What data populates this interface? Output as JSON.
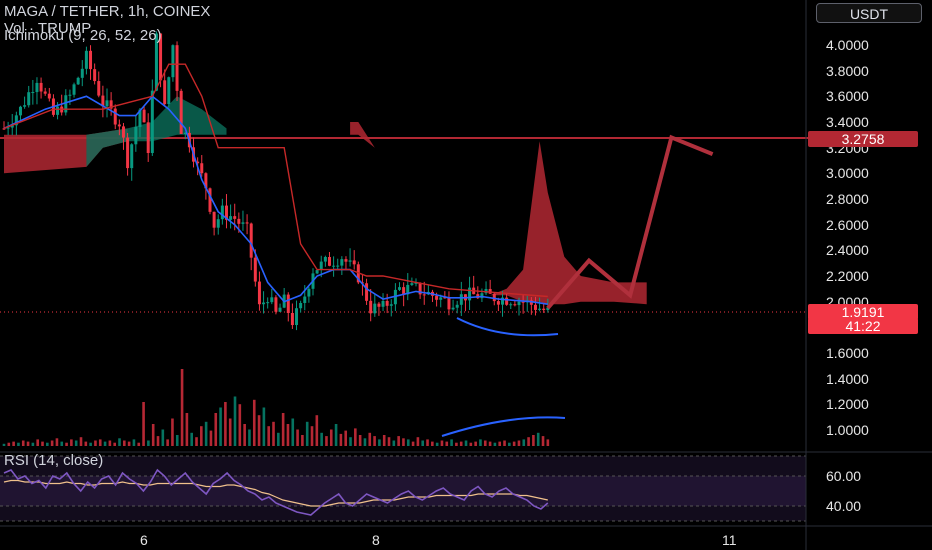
{
  "header": {
    "symbol_line": "MAGA / TETHER, 1h, COINEX",
    "vol_line": "Vol · TRUMP",
    "ichimoku_line": "Ichimoku (9, 26, 52, 26)"
  },
  "currency_button": "USDT",
  "price_tags": {
    "level": "3.2758",
    "last_price": "1.9191",
    "countdown": "41:22"
  },
  "rsi_title": "RSI (14, close)",
  "colors": {
    "bg": "#000000",
    "up": "#089981",
    "down": "#f23645",
    "cloud_bear": "#b22833",
    "cloud_bull": "#0b6e5a",
    "rsi": "#7e57c2",
    "rsi_ma": "#f0c18c",
    "projection": "#b0303c",
    "annot_blue": "#2962ff"
  },
  "chart_data": [
    {
      "type": "candlestick",
      "title": "MAGA / TETHER, 1h, COINEX",
      "y_ticks": [
        "4.0000",
        "3.8000",
        "3.6000",
        "3.4000",
        "3.2000",
        "3.0000",
        "2.8000",
        "2.6000",
        "2.4000",
        "2.2000",
        "2.0000",
        "1.8000",
        "1.6000",
        "1.4000",
        "1.2000",
        "1.0000"
      ],
      "x_ticks": [
        "6",
        "8",
        "11"
      ],
      "ylim": [
        0.95,
        4.1
      ],
      "grid": false,
      "horizontal_level": 3.2758,
      "last_price": 1.9191,
      "close_path": [
        {
          "t": 0,
          "p": 3.35
        },
        {
          "t": 4,
          "p": 3.5
        },
        {
          "t": 8,
          "p": 3.75
        },
        {
          "t": 12,
          "p": 3.45
        },
        {
          "t": 16,
          "p": 3.6
        },
        {
          "t": 20,
          "p": 3.9
        },
        {
          "t": 24,
          "p": 3.55
        },
        {
          "t": 28,
          "p": 3.4
        },
        {
          "t": 30,
          "p": 3.1
        },
        {
          "t": 33,
          "p": 3.5
        },
        {
          "t": 35,
          "p": 3.2
        },
        {
          "t": 37,
          "p": 4.05
        },
        {
          "t": 39,
          "p": 3.5
        },
        {
          "t": 41,
          "p": 4.0
        },
        {
          "t": 43,
          "p": 3.35
        },
        {
          "t": 45,
          "p": 3.25
        },
        {
          "t": 47,
          "p": 3.05
        },
        {
          "t": 49,
          "p": 2.9
        },
        {
          "t": 51,
          "p": 2.6
        },
        {
          "t": 53,
          "p": 2.7
        },
        {
          "t": 56,
          "p": 2.65
        },
        {
          "t": 59,
          "p": 2.55
        },
        {
          "t": 62,
          "p": 1.95
        },
        {
          "t": 64,
          "p": 2.05
        },
        {
          "t": 66,
          "p": 1.9
        },
        {
          "t": 68,
          "p": 2.0
        },
        {
          "t": 70,
          "p": 1.85
        },
        {
          "t": 72,
          "p": 1.95
        },
        {
          "t": 75,
          "p": 2.25
        },
        {
          "t": 78,
          "p": 2.3
        },
        {
          "t": 82,
          "p": 2.35
        },
        {
          "t": 86,
          "p": 2.2
        },
        {
          "t": 89,
          "p": 1.95
        },
        {
          "t": 92,
          "p": 1.95
        },
        {
          "t": 96,
          "p": 2.1
        },
        {
          "t": 100,
          "p": 2.1
        },
        {
          "t": 104,
          "p": 2.05
        },
        {
          "t": 108,
          "p": 2.0
        },
        {
          "t": 112,
          "p": 2.05
        },
        {
          "t": 116,
          "p": 2.05
        },
        {
          "t": 120,
          "p": 2.03
        },
        {
          "t": 124,
          "p": 2.02
        },
        {
          "t": 128,
          "p": 1.98
        },
        {
          "t": 132,
          "p": 1.92
        }
      ],
      "ichimoku": {
        "conversion_line": [
          [
            0,
            3.35
          ],
          [
            10,
            3.5
          ],
          [
            20,
            3.6
          ],
          [
            28,
            3.45
          ],
          [
            32,
            3.45
          ],
          [
            36,
            3.6
          ],
          [
            40,
            3.5
          ],
          [
            44,
            3.35
          ],
          [
            48,
            2.95
          ],
          [
            52,
            2.7
          ],
          [
            56,
            2.6
          ],
          [
            60,
            2.45
          ],
          [
            64,
            2.15
          ],
          [
            68,
            2.0
          ],
          [
            72,
            2.05
          ],
          [
            76,
            2.2
          ],
          [
            80,
            2.25
          ],
          [
            84,
            2.25
          ],
          [
            88,
            2.1
          ],
          [
            92,
            2.02
          ],
          [
            96,
            2.05
          ],
          [
            100,
            2.08
          ],
          [
            104,
            2.06
          ],
          [
            108,
            2.03
          ],
          [
            112,
            2.03
          ],
          [
            116,
            2.04
          ],
          [
            120,
            2.02
          ],
          [
            124,
            2.01
          ],
          [
            128,
            2.0
          ],
          [
            132,
            1.98
          ]
        ],
        "base_line": [
          [
            0,
            3.35
          ],
          [
            12,
            3.5
          ],
          [
            24,
            3.5
          ],
          [
            36,
            3.6
          ],
          [
            40,
            3.85
          ],
          [
            44,
            3.85
          ],
          [
            48,
            3.6
          ],
          [
            52,
            3.2
          ],
          [
            56,
            3.2
          ],
          [
            60,
            3.2
          ],
          [
            64,
            3.2
          ],
          [
            68,
            3.2
          ],
          [
            72,
            2.45
          ],
          [
            76,
            2.25
          ],
          [
            80,
            2.25
          ],
          [
            84,
            2.25
          ],
          [
            88,
            2.2
          ],
          [
            92,
            2.2
          ],
          [
            100,
            2.15
          ],
          [
            108,
            2.1
          ],
          [
            116,
            2.08
          ],
          [
            124,
            2.06
          ],
          [
            132,
            2.04
          ]
        ],
        "cloud_upper": [
          [
            0,
            3.3
          ],
          [
            20,
            3.3
          ],
          [
            24,
            3.32
          ],
          [
            30,
            3.35
          ],
          [
            36,
            3.4
          ],
          [
            42,
            3.6
          ],
          [
            48,
            3.5
          ],
          [
            54,
            3.35
          ],
          [
            60,
            3.35
          ],
          [
            64,
            3.3
          ],
          [
            68,
            3.3
          ],
          [
            70,
            3.55
          ],
          [
            84,
            3.4
          ],
          [
            86,
            3.4
          ],
          [
            90,
            3.2
          ],
          [
            94,
            2.9
          ],
          [
            98,
            2.75
          ],
          [
            102,
            2.6
          ],
          [
            106,
            2.3
          ],
          [
            110,
            2.2
          ],
          [
            114,
            2.1
          ],
          [
            118,
            2.05
          ],
          [
            122,
            2.1
          ],
          [
            126,
            2.25
          ],
          [
            130,
            3.25
          ],
          [
            132,
            2.85
          ],
          [
            136,
            2.35
          ],
          [
            140,
            2.2
          ],
          [
            148,
            2.15
          ],
          [
            156,
            2.15
          ]
        ],
        "cloud_lower": [
          [
            0,
            3.0
          ],
          [
            20,
            3.05
          ],
          [
            24,
            3.2
          ],
          [
            30,
            3.25
          ],
          [
            36,
            3.25
          ],
          [
            42,
            3.3
          ],
          [
            48,
            3.3
          ],
          [
            54,
            3.3
          ],
          [
            60,
            3.3
          ],
          [
            64,
            3.3
          ],
          [
            68,
            3.3
          ],
          [
            70,
            3.3
          ],
          [
            84,
            3.3
          ],
          [
            86,
            3.3
          ],
          [
            90,
            3.2
          ],
          [
            94,
            2.9
          ],
          [
            98,
            2.75
          ],
          [
            102,
            2.6
          ],
          [
            106,
            2.3
          ],
          [
            110,
            2.2
          ],
          [
            114,
            2.1
          ],
          [
            118,
            2.05
          ],
          [
            122,
            2.05
          ],
          [
            126,
            2.0
          ],
          [
            130,
            2.0
          ],
          [
            132,
            1.98
          ],
          [
            136,
            1.98
          ],
          [
            140,
            2.0
          ],
          [
            148,
            2.0
          ],
          [
            156,
            1.98
          ]
        ]
      },
      "projection_path": [
        [
          132,
          1.95
        ],
        [
          142,
          2.32
        ],
        [
          152,
          2.05
        ],
        [
          162,
          3.28
        ],
        [
          172,
          3.15
        ]
      ]
    },
    {
      "type": "bar",
      "title": "Vol · TRUMP",
      "values": [
        2,
        3,
        4,
        3,
        5,
        4,
        3,
        6,
        4,
        3,
        5,
        7,
        4,
        3,
        6,
        5,
        8,
        4,
        3,
        5,
        6,
        4,
        5,
        3,
        7,
        5,
        4,
        6,
        3,
        40,
        5,
        20,
        9,
        15,
        6,
        25,
        10,
        70,
        30,
        12,
        8,
        18,
        22,
        14,
        30,
        35,
        40,
        25,
        45,
        38,
        20,
        15,
        42,
        28,
        35,
        18,
        22,
        12,
        30,
        20,
        25,
        15,
        10,
        22,
        18,
        28,
        12,
        9,
        15,
        20,
        11,
        14,
        8,
        16,
        10,
        7,
        12,
        9,
        6,
        10,
        8,
        5,
        9,
        7,
        6,
        4,
        8,
        5,
        6,
        4,
        3,
        5,
        4,
        6,
        3,
        4,
        5,
        3,
        4,
        6,
        5,
        4,
        3,
        4,
        5,
        3,
        4,
        5,
        6,
        8,
        10,
        12,
        9,
        6
      ],
      "ylim": [
        0,
        100
      ]
    },
    {
      "type": "line",
      "title": "RSI (14, close)",
      "y_ticks": [
        "60.00",
        "40.00"
      ],
      "ylim": [
        30,
        75
      ],
      "series": [
        {
          "values": [
            62,
            64,
            58,
            60,
            55,
            57,
            52,
            60,
            58,
            62,
            55,
            50,
            56,
            52,
            58,
            60,
            54,
            62,
            58,
            55,
            50,
            56,
            64,
            60,
            54,
            58,
            62,
            56,
            52,
            48,
            55,
            58,
            62,
            57,
            54,
            50,
            48,
            44,
            46,
            42,
            40,
            38,
            36,
            35,
            34,
            38,
            42,
            45,
            48,
            42,
            40,
            44,
            48,
            46,
            44,
            42,
            45,
            48,
            50,
            46,
            44,
            47,
            50,
            52,
            48,
            46,
            44,
            50,
            53,
            48,
            46,
            50,
            52,
            48,
            46,
            44,
            40,
            38,
            42
          ]
        },
        {
          "values": [
            56,
            57,
            57,
            56,
            56,
            56,
            55,
            55,
            55,
            56,
            55,
            55,
            54,
            54,
            55,
            55,
            55,
            56,
            55,
            55,
            54,
            54,
            55,
            55,
            55,
            55,
            55,
            55,
            54,
            53,
            53,
            53,
            54,
            54,
            53,
            52,
            51,
            49,
            48,
            46,
            44,
            43,
            42,
            41,
            40,
            40,
            40,
            41,
            42,
            42,
            42,
            42,
            43,
            44,
            44,
            44,
            44,
            45,
            46,
            46,
            46,
            46,
            47,
            47,
            47,
            47,
            47,
            47,
            48,
            48,
            48,
            48,
            48,
            48,
            47,
            47,
            46,
            45,
            44
          ]
        }
      ]
    }
  ]
}
